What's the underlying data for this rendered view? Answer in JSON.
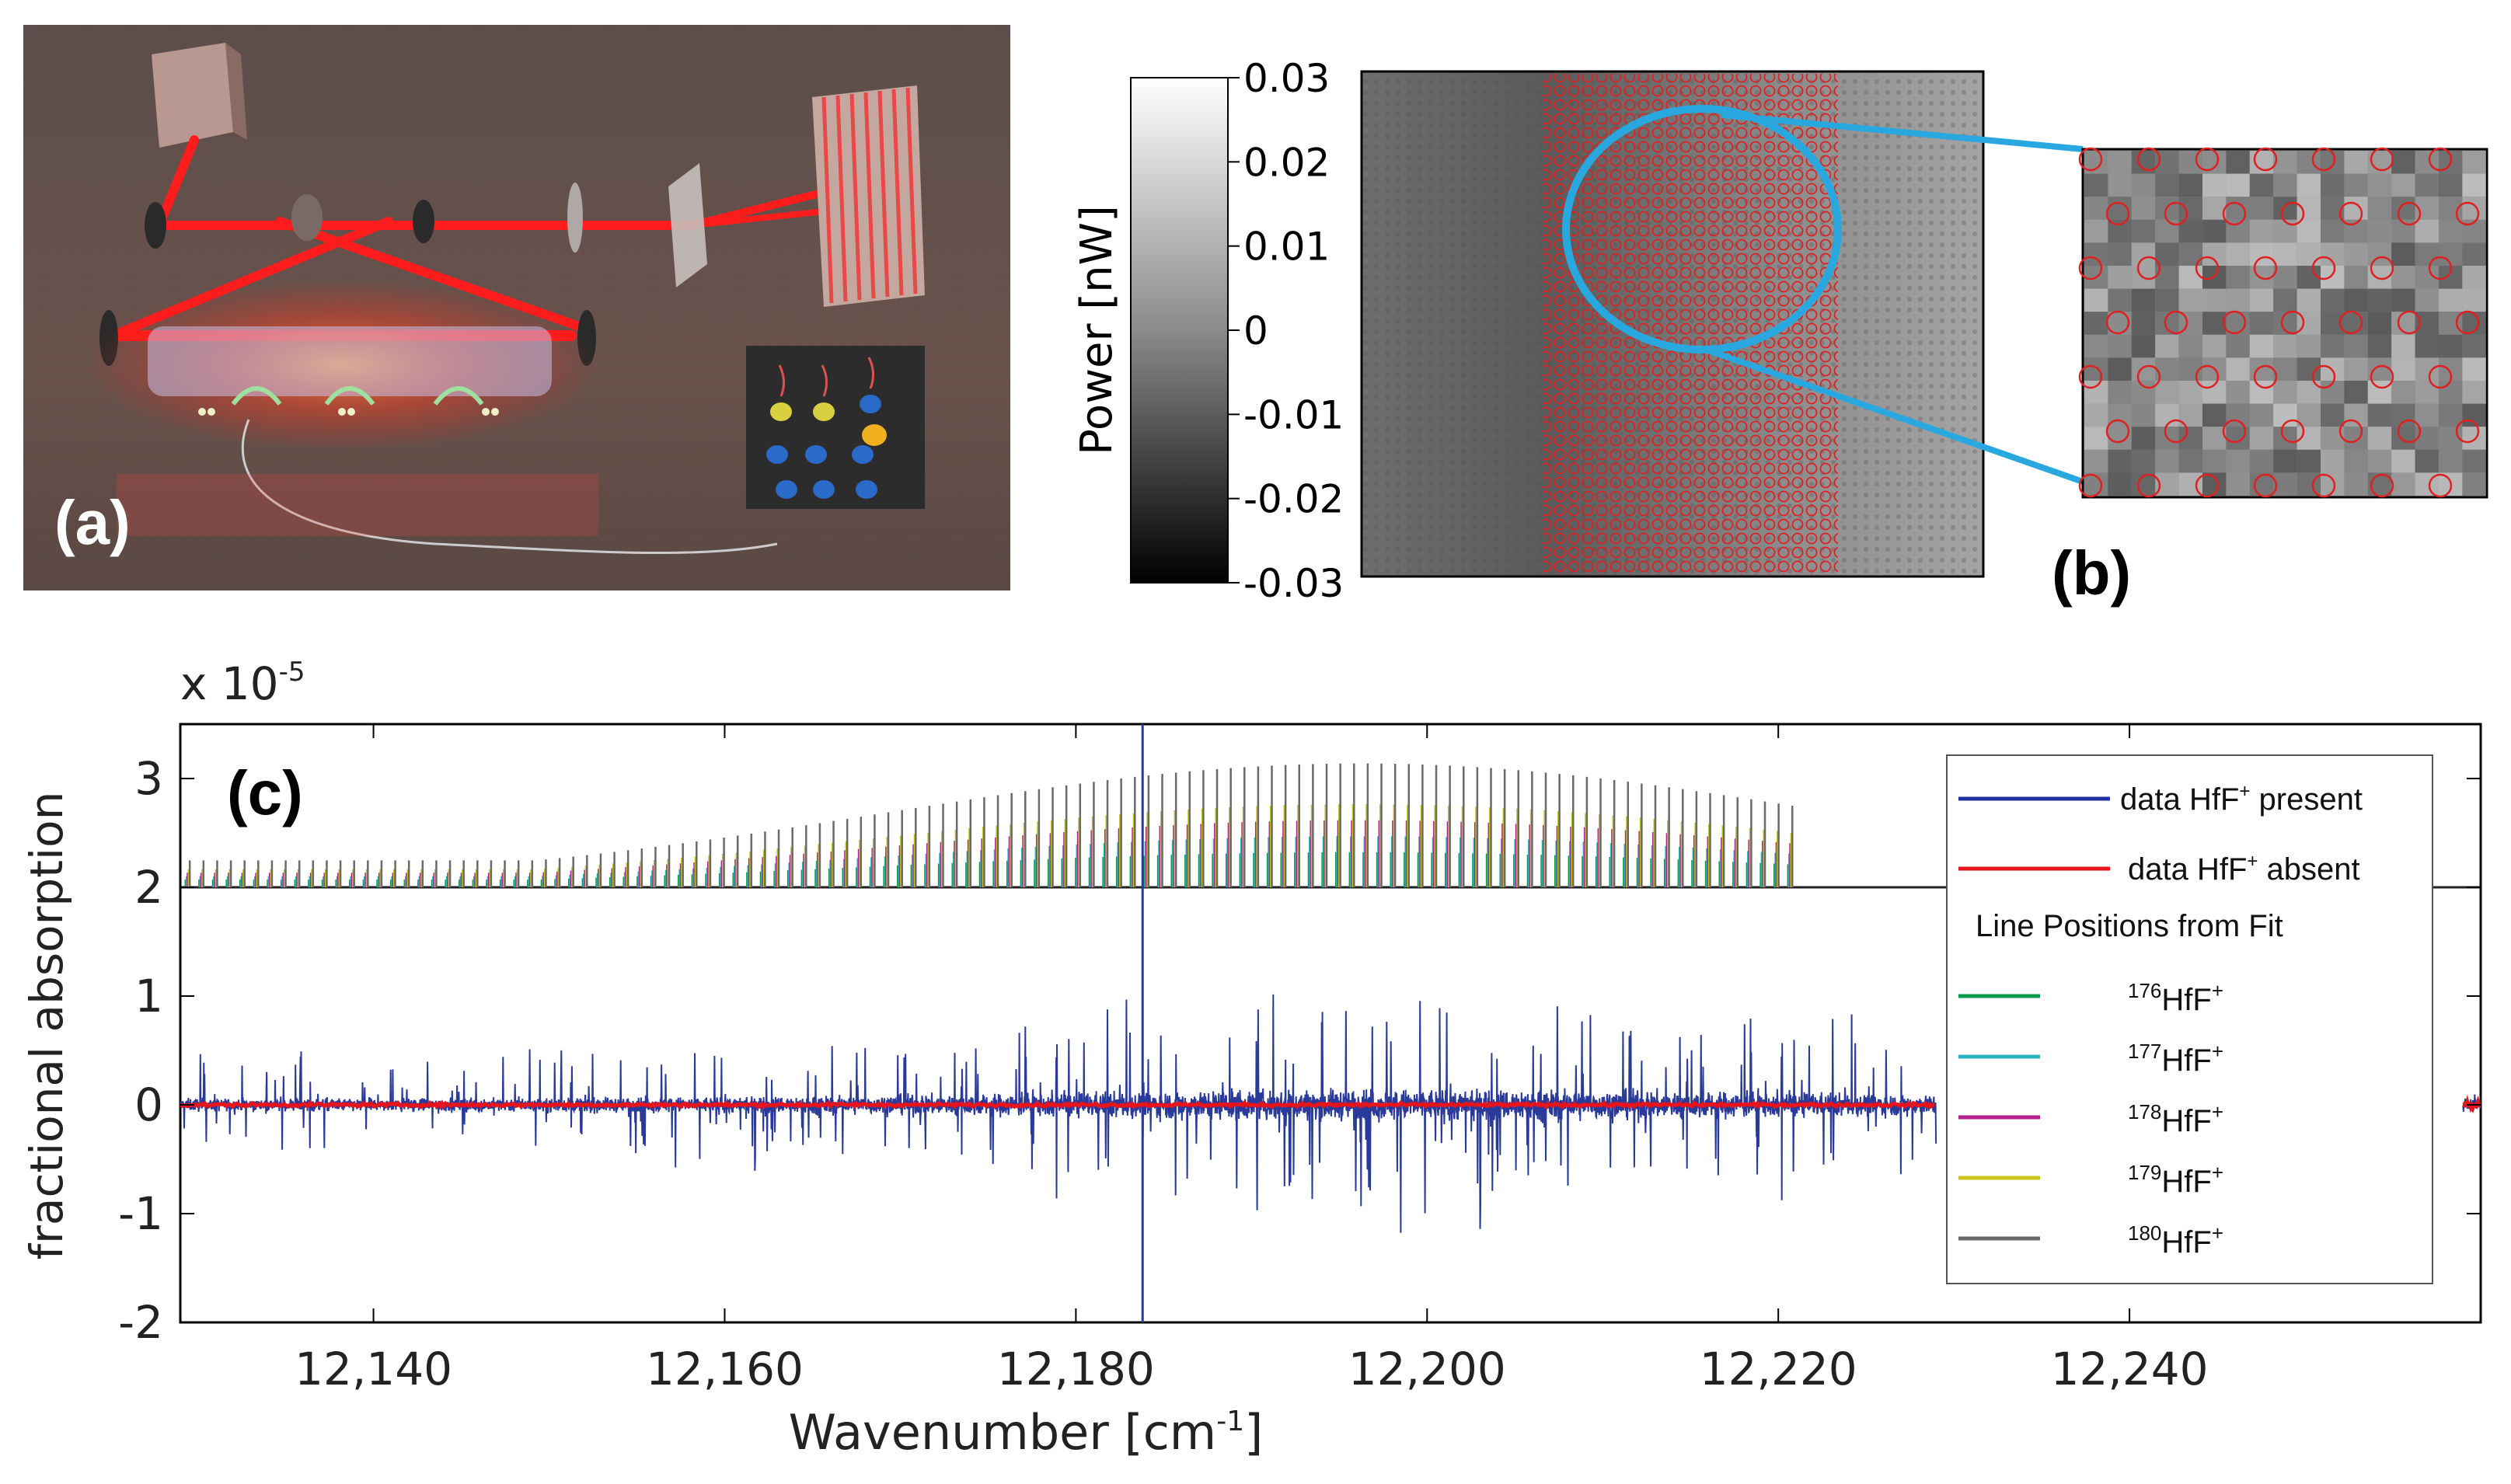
{
  "panels": {
    "a": {
      "tag": "(a)"
    },
    "b": {
      "tag": "(b)",
      "colorbar": {
        "label": "Power [nW]",
        "ticks": [
          "0.03",
          "0.02",
          "0.01",
          "0",
          "-0.01",
          "-0.02",
          "-0.03"
        ],
        "tick_values": [
          0.03,
          0.02,
          0.01,
          0,
          -0.01,
          -0.02,
          -0.03
        ],
        "range": [
          -0.03,
          0.03
        ]
      }
    },
    "c": {
      "tag": "(c)"
    }
  },
  "chart_data": {
    "type": "line",
    "title": "",
    "xlabel_main": "Wavenumber [cm",
    "xlabel_sup": "-1",
    "xlabel_end": "]",
    "ylabel": "fractional absorption",
    "y_scale_prefix": "x 10",
    "y_scale_exp": "-5",
    "xlim": [
      12129,
      12260
    ],
    "ylim": [
      -2,
      3.5
    ],
    "x_ticks": [
      12140,
      12160,
      12180,
      12200,
      12220,
      12240
    ],
    "x_tick_labels": [
      "12,140",
      "12,160",
      "12,180",
      "12,200",
      "12,220",
      "12,240"
    ],
    "y_ticks": [
      -2,
      -1,
      0,
      1,
      2,
      3
    ],
    "y_tick_labels": [
      "-2",
      "-1",
      "0",
      "1",
      "2",
      "3"
    ],
    "series": [
      {
        "name": "data HfF⁺ present",
        "color": "#2a3a9a",
        "values_desc": "noise around 0, spikes to about ±1.5, data from 12129 to 12229 and 12259 to 12260"
      },
      {
        "name": "data HfF⁺ absent",
        "color": "#e8141c",
        "values_desc": "flat near 0"
      }
    ],
    "fit_lines_baseline": 2,
    "fit_lines_range": [
      12129,
      12221
    ],
    "legend": {
      "entries": [
        {
          "label": "data HfF",
          "sup": "+",
          "tail": " present",
          "color": "#1f2fa0"
        },
        {
          "label": "data HfF",
          "sup": "+",
          "tail": " absent",
          "color": "#e8141c"
        }
      ],
      "subtitle": "Line Positions from Fit",
      "isotopes": [
        {
          "mass": "176",
          "species": "HfF",
          "charge": "+",
          "color": "#0a9a4a"
        },
        {
          "mass": "177",
          "species": "HfF",
          "charge": "+",
          "color": "#2cb8c0"
        },
        {
          "mass": "178",
          "species": "HfF",
          "charge": "+",
          "color": "#b0208c"
        },
        {
          "mass": "179",
          "species": "HfF",
          "charge": "+",
          "color": "#c8c420"
        },
        {
          "mass": "180",
          "species": "HfF",
          "charge": "+",
          "color": "#6a6a6a"
        }
      ],
      "placement": "right"
    }
  }
}
